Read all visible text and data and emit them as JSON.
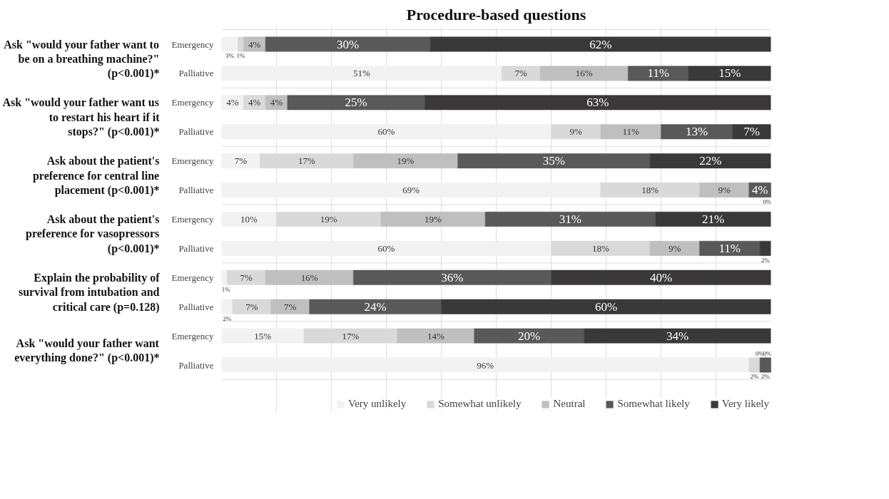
{
  "chart_data": {
    "type": "bar",
    "orientation": "horizontal",
    "stacked": true,
    "title": "Procedure-based questions",
    "categories": [
      "Emergency",
      "Palliative",
      "Emergency",
      "Palliative",
      "Emergency",
      "Palliative",
      "Emergency",
      "Palliative",
      "Emergency",
      "Palliative",
      "Emergency",
      "Palliative"
    ],
    "annotations": [
      "Ask \"would your father want to be on a breathing machine?\" (p<0.001)*",
      "Ask \"would your father want us to restart his heart if it stops?\" (p<0.001)*",
      "Ask about the patient's preference for central line placement (p<0.001)*",
      "Ask about the patient's preference for vasopressors (p<0.001)*",
      "Explain the probability of survival from intubation and critical care (p=0.128)",
      "Ask \"would your father want everything done?\" (p<0.001)*"
    ],
    "series": [
      {
        "name": "Very unlikely",
        "color": "#f2f2f2",
        "values": [
          3,
          51,
          4,
          60,
          7,
          69,
          10,
          60,
          1,
          2,
          15,
          96
        ],
        "value_labels": [
          "3%",
          "51%",
          "4%",
          "60%",
          "7%",
          "69%",
          "10%",
          "60%",
          "1%",
          "2%",
          "15%",
          "96%"
        ]
      },
      {
        "name": "Somewhat unlikely",
        "color": "#d9d9d9",
        "values": [
          1,
          7,
          4,
          9,
          17,
          18,
          19,
          18,
          7,
          7,
          17,
          2
        ],
        "value_labels": [
          "1%",
          "7%",
          "4%",
          "9%",
          "17%",
          "18%",
          "19%",
          "18%",
          "7%",
          "7%",
          "17%",
          "2%"
        ]
      },
      {
        "name": "Neutral",
        "color": "#bfbfbf",
        "values": [
          4,
          16,
          4,
          11,
          19,
          9,
          19,
          9,
          16,
          7,
          14,
          0
        ],
        "value_labels": [
          "4%",
          "16%",
          "4%",
          "11%",
          "19%",
          "9%",
          "19%",
          "9%",
          "16%",
          "7%",
          "14%",
          "0%"
        ]
      },
      {
        "name": "Somewhat likely",
        "color": "#595959",
        "values": [
          30,
          11,
          25,
          13,
          35,
          4,
          31,
          11,
          36,
          24,
          20,
          2
        ],
        "value_labels": [
          "30%",
          "11%",
          "25%",
          "13%",
          "35%",
          "4%",
          "31%",
          "11%",
          "36%",
          "24%",
          "20%",
          "2%"
        ]
      },
      {
        "name": "Very likely",
        "color": "#3a3838",
        "values": [
          62,
          15,
          63,
          7,
          22,
          0,
          21,
          2,
          40,
          60,
          34,
          0
        ],
        "value_labels": [
          "62%",
          "15%",
          "63%",
          "7%",
          "22%",
          "0%",
          "21%",
          "2%",
          "40%",
          "60%",
          "34%",
          "0%"
        ]
      }
    ],
    "xlim": [
      0,
      100
    ],
    "xticks": [
      {
        "value": 10,
        "label": null
      },
      {
        "value": 20,
        "label": null
      },
      {
        "value": 30,
        "label": null
      },
      {
        "value": 40,
        "label": null
      },
      {
        "value": 50,
        "label": null
      },
      {
        "value": 60,
        "label": null
      },
      {
        "value": 70,
        "label": null
      },
      {
        "value": 80,
        "label": null
      },
      {
        "value": 90,
        "label": null
      }
    ],
    "grid": "x",
    "legend": "bottom",
    "tick_labels": "y"
  }
}
